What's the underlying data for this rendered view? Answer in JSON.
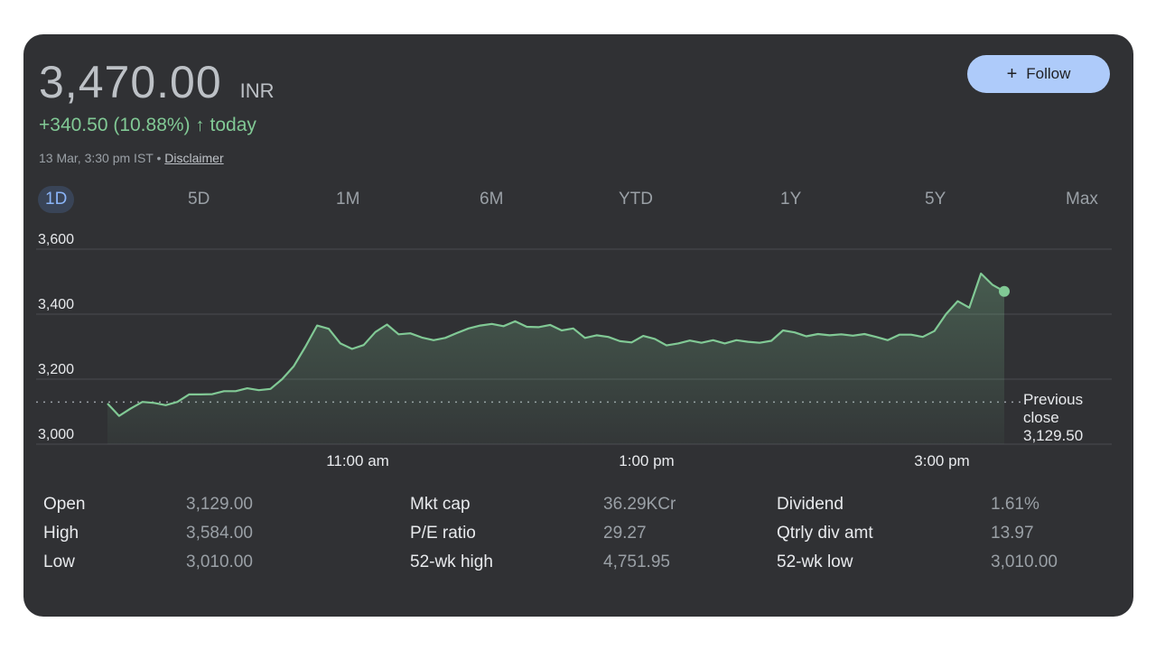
{
  "quote": {
    "price": "3,470.00",
    "currency": "INR",
    "change": "+340.50 (10.88%)",
    "change_arrow": "↑",
    "change_period": "today",
    "timestamp": "13 Mar, 3:30 pm IST",
    "separator": "•",
    "disclaimer": "Disclaimer"
  },
  "follow_button": {
    "icon": "+",
    "label": "Follow"
  },
  "tabs": [
    "1D",
    "5D",
    "1M",
    "6M",
    "YTD",
    "1Y",
    "5Y",
    "Max"
  ],
  "active_tab": "1D",
  "colors": {
    "card_bg": "#303134",
    "line": "#81c995",
    "positive": "#81c995",
    "accent": "#8ab4f8",
    "follow_bg": "#aecbfa"
  },
  "chart_data": {
    "type": "area",
    "x_ticks": [
      "11:00 am",
      "1:00 pm",
      "3:00 pm"
    ],
    "y_ticks": [
      "3,600",
      "3,400",
      "3,200",
      "3,000"
    ],
    "ylim": [
      3000,
      3600
    ],
    "grid": true,
    "previous_close": {
      "label_line1": "Previous",
      "label_line2": "close",
      "value_text": "3,129.50",
      "value": 3129.5
    },
    "series": [
      {
        "values": [
          3125,
          3087,
          3110,
          3130,
          3127,
          3120,
          3130,
          3153,
          3153,
          3154,
          3163,
          3163,
          3172,
          3166,
          3170,
          3200,
          3240,
          3300,
          3365,
          3355,
          3310,
          3293,
          3305,
          3345,
          3368,
          3338,
          3341,
          3328,
          3320,
          3327,
          3342,
          3356,
          3365,
          3370,
          3363,
          3378,
          3361,
          3360,
          3367,
          3350,
          3356,
          3327,
          3335,
          3330,
          3317,
          3313,
          3333,
          3324,
          3304,
          3310,
          3319,
          3312,
          3320,
          3310,
          3320,
          3315,
          3312,
          3318,
          3350,
          3344,
          3332,
          3339,
          3335,
          3338,
          3334,
          3339,
          3330,
          3320,
          3337,
          3337,
          3330,
          3348,
          3400,
          3440,
          3420,
          3525,
          3490,
          3470
        ]
      }
    ]
  },
  "stats": [
    [
      {
        "label": "Open",
        "value": "3,129.00"
      },
      {
        "label": "High",
        "value": "3,584.00"
      },
      {
        "label": "Low",
        "value": "3,010.00"
      }
    ],
    [
      {
        "label": "Mkt cap",
        "value": "36.29KCr"
      },
      {
        "label": "P/E ratio",
        "value": "29.27"
      },
      {
        "label": "52-wk high",
        "value": "4,751.95"
      }
    ],
    [
      {
        "label": "Dividend",
        "value": "1.61%"
      },
      {
        "label": "Qtrly div amt",
        "value": "13.97"
      },
      {
        "label": "52-wk low",
        "value": "3,010.00"
      }
    ]
  ]
}
